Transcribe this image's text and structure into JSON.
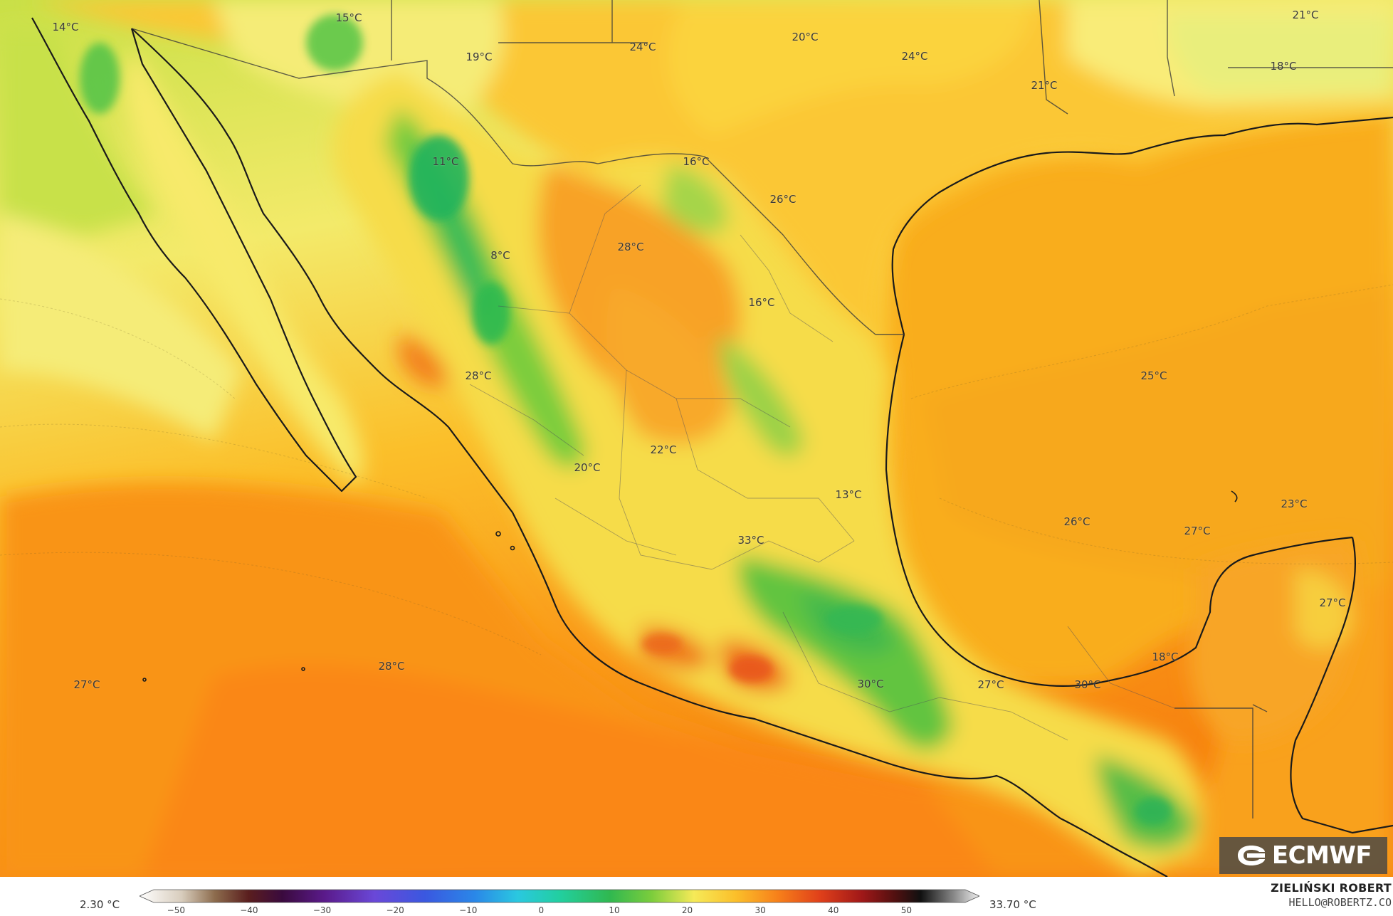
{
  "map": {
    "temperature_labels": [
      {
        "text": "14°C",
        "value": 14
      },
      {
        "text": "15°C",
        "value": 15
      },
      {
        "text": "19°C",
        "value": 19
      },
      {
        "text": "24°C",
        "value": 24
      },
      {
        "text": "20°C",
        "value": 20
      },
      {
        "text": "24°C",
        "value": 24
      },
      {
        "text": "21°C",
        "value": 21
      },
      {
        "text": "21°C",
        "value": 21
      },
      {
        "text": "18°C",
        "value": 18
      },
      {
        "text": "11°C",
        "value": 11
      },
      {
        "text": "16°C",
        "value": 16
      },
      {
        "text": "26°C",
        "value": 26
      },
      {
        "text": "28°C",
        "value": 28
      },
      {
        "text": "8°C",
        "value": 8
      },
      {
        "text": "16°C",
        "value": 16
      },
      {
        "text": "28°C",
        "value": 28
      },
      {
        "text": "25°C",
        "value": 25
      },
      {
        "text": "22°C",
        "value": 22
      },
      {
        "text": "20°C",
        "value": 20
      },
      {
        "text": "13°C",
        "value": 13
      },
      {
        "text": "23°C",
        "value": 23
      },
      {
        "text": "26°C",
        "value": 26
      },
      {
        "text": "27°C",
        "value": 27
      },
      {
        "text": "33°C",
        "value": 33
      },
      {
        "text": "27°C",
        "value": 27
      },
      {
        "text": "18°C",
        "value": 18
      },
      {
        "text": "27°C",
        "value": 27
      },
      {
        "text": "28°C",
        "value": 28
      },
      {
        "text": "30°C",
        "value": 30
      },
      {
        "text": "27°C",
        "value": 27
      },
      {
        "text": "30°C",
        "value": 30
      }
    ]
  },
  "logo": {
    "text": "ECMWF"
  },
  "scale": {
    "min_label": "2.30 °C",
    "max_label": "33.70 °C",
    "ticks": [
      "−50",
      "−40",
      "−30",
      "−20",
      "−10",
      "0",
      "10",
      "20",
      "30",
      "40",
      "50"
    ],
    "range": [
      -55,
      60
    ]
  },
  "author": {
    "name": "ZIELIŃSKI ROBERT",
    "email": "HELLO@ROBERTZ.CO"
  }
}
